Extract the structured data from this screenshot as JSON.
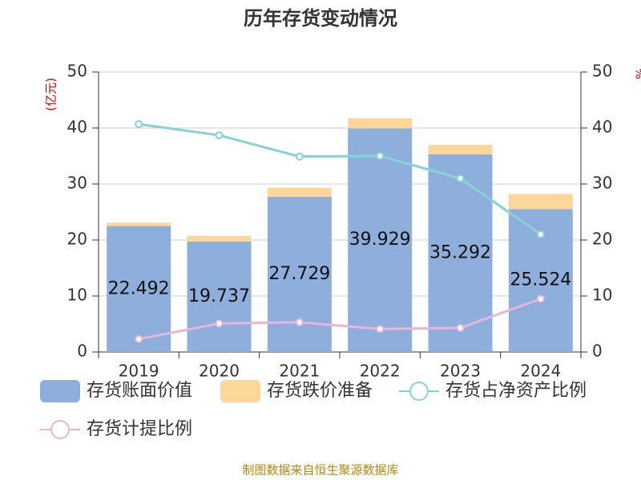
{
  "chart_data": {
    "type": "bar",
    "title": "历年存货变动情况",
    "ylabel": "(亿元)",
    "y2label": "%",
    "categories": [
      "2019",
      "2020",
      "2021",
      "2022",
      "2023",
      "2024"
    ],
    "series": [
      {
        "name": "存货账面价值",
        "type": "bar",
        "color": "#8eaedb",
        "values": [
          22.492,
          19.737,
          27.729,
          39.929,
          35.292,
          25.524
        ]
      },
      {
        "name": "存货跌价准备",
        "type": "bar",
        "color": "#fdd79a",
        "values": [
          0.6,
          1.0,
          1.6,
          1.8,
          1.7,
          2.7
        ]
      },
      {
        "name": "存货占净资产比例",
        "type": "line",
        "axis": "y2",
        "color": "#86d3d5",
        "values": [
          40.7,
          38.7,
          34.9,
          35.0,
          31.0,
          21.0
        ]
      },
      {
        "name": "存货计提比例",
        "type": "line",
        "axis": "y2",
        "color": "#e7b5dc",
        "values": [
          2.3,
          5.1,
          5.3,
          4.1,
          4.3,
          9.5
        ]
      }
    ],
    "stacked": true,
    "ylim": [
      0,
      50
    ],
    "yticks": [
      0,
      10,
      20,
      30,
      40,
      50
    ],
    "y2lim": [
      0,
      50
    ],
    "y2ticks": [
      0,
      10,
      20,
      30,
      40,
      50
    ],
    "grid": true,
    "footer": "制图数据来自恒生聚源数据库"
  }
}
